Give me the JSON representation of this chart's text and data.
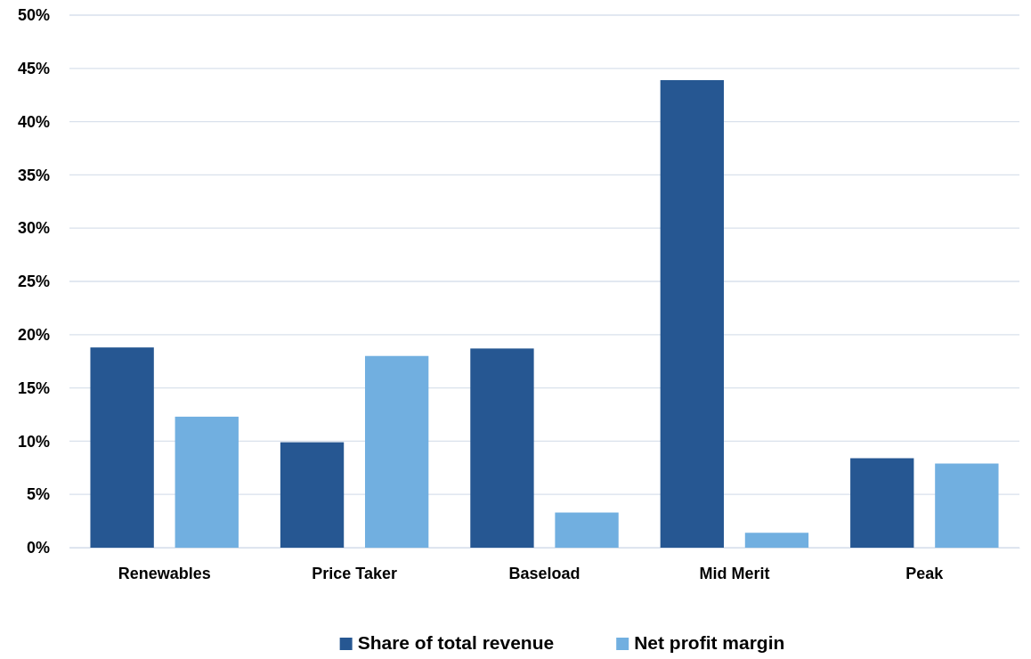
{
  "chart_data": {
    "type": "bar",
    "categories": [
      "Renewables",
      "Price Taker",
      "Baseload",
      "Mid Merit",
      "Peak"
    ],
    "series": [
      {
        "name": "Share of total revenue",
        "color": "#265792",
        "values": [
          18.8,
          9.9,
          18.7,
          43.9,
          8.4
        ]
      },
      {
        "name": "Net profit margin",
        "color": "#71afe0",
        "values": [
          12.3,
          18.0,
          3.3,
          1.4,
          7.9
        ]
      }
    ],
    "ylim": [
      0,
      50
    ],
    "yticks": [
      {
        "value": 0,
        "label": "0%"
      },
      {
        "value": 5,
        "label": "5%"
      },
      {
        "value": 10,
        "label": "10%"
      },
      {
        "value": 15,
        "label": "15%"
      },
      {
        "value": 20,
        "label": "20%"
      },
      {
        "value": 25,
        "label": "25%"
      },
      {
        "value": 30,
        "label": "30%"
      },
      {
        "value": 35,
        "label": "35%"
      },
      {
        "value": 40,
        "label": "40%"
      },
      {
        "value": 45,
        "label": "45%"
      },
      {
        "value": 50,
        "label": "50%"
      }
    ],
    "grid": "y",
    "legend": "bottom"
  }
}
